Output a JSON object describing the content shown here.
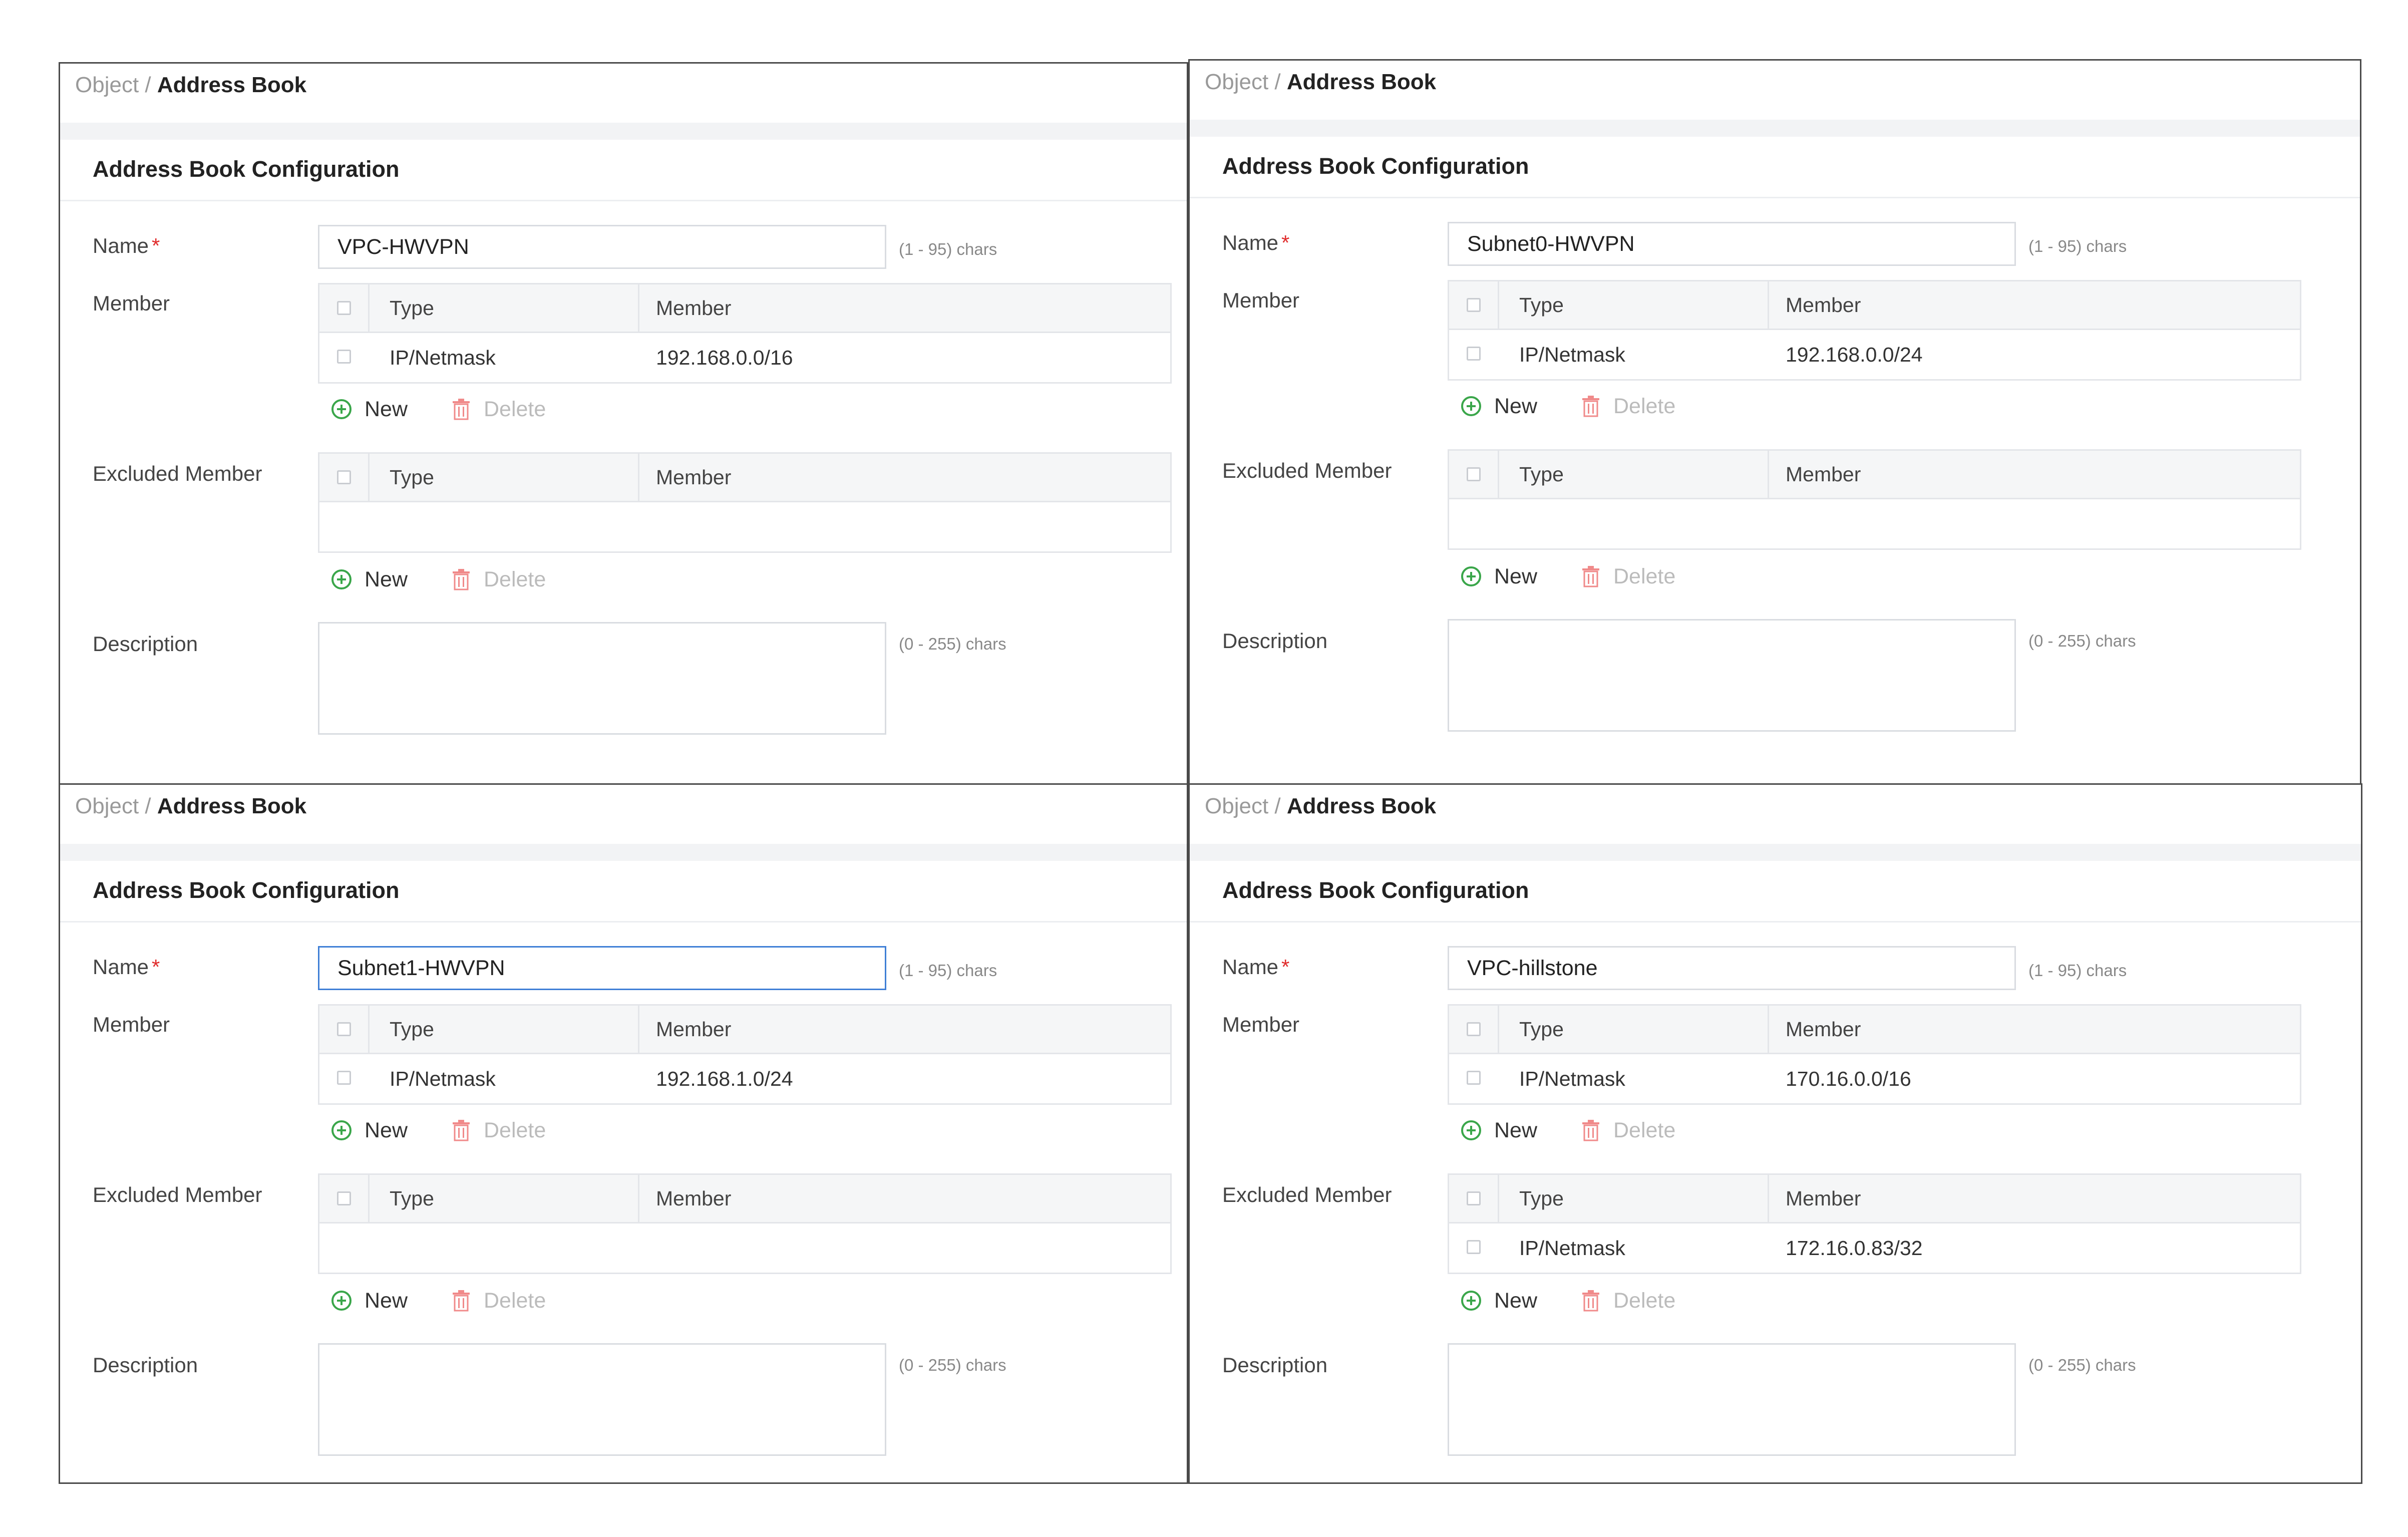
{
  "labels": {
    "breadcrumb_parent": "Object /",
    "breadcrumb_current": "Address Book",
    "section_title": "Address Book Configuration",
    "name": "Name",
    "required_mark": "*",
    "member": "Member",
    "excluded_member": "Excluded Member",
    "description": "Description",
    "name_hint": "(1 - 95) chars",
    "description_hint": "(0 - 255) chars",
    "col_type": "Type",
    "col_member": "Member",
    "new": "New",
    "delete": "Delete"
  },
  "icons": {
    "add": "plus-circle-icon",
    "delete": "trash-icon",
    "select": "checkbox"
  },
  "colors": {
    "add_icon": "#3aa64a",
    "delete_icon": "#f08a8a",
    "required": "#e02c2c",
    "focus_border": "#3f7fd6"
  },
  "panels": [
    {
      "name_value": "VPC-HWVPN",
      "members": [
        {
          "type": "IP/Netmask",
          "value": "192.168.0.0/16"
        }
      ],
      "excluded": []
    },
    {
      "name_value": "Subnet0-HWVPN",
      "members": [
        {
          "type": "IP/Netmask",
          "value": "192.168.0.0/24"
        }
      ],
      "excluded": []
    },
    {
      "name_value": "Subnet1-HWVPN",
      "members": [
        {
          "type": "IP/Netmask",
          "value": "192.168.1.0/24"
        }
      ],
      "excluded": []
    },
    {
      "name_value": "VPC-hillstone",
      "members": [
        {
          "type": "IP/Netmask",
          "value": "170.16.0.0/16"
        }
      ],
      "excluded": [
        {
          "type": "IP/Netmask",
          "value": "172.16.0.83/32"
        }
      ]
    }
  ]
}
